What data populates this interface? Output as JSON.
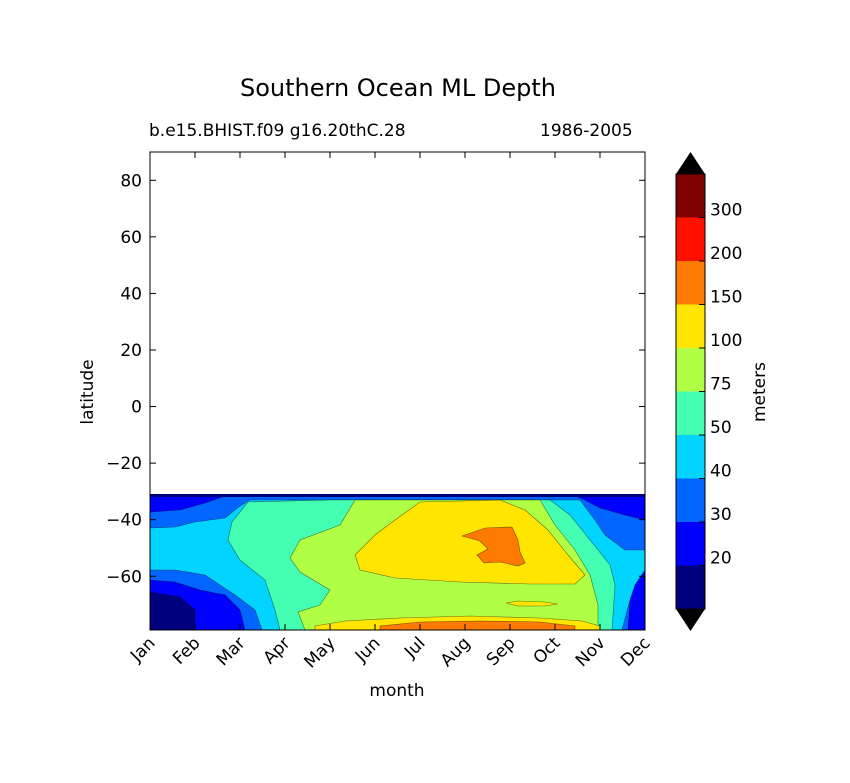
{
  "chart_data": {
    "type": "contourf",
    "title": "Southern Ocean ML Depth",
    "subtitle_left": "b.e15.BHIST.f09 g16.20thC.28",
    "subtitle_right": "1986-2005",
    "xlabel": "month",
    "ylabel": "latitude",
    "x_categories": [
      "Jan",
      "Feb",
      "Mar",
      "Apr",
      "May",
      "Jun",
      "Jul",
      "Aug",
      "Sep",
      "Oct",
      "Nov",
      "Dec"
    ],
    "yticks": [
      80,
      60,
      40,
      20,
      0,
      -20,
      -40,
      -60
    ],
    "ylim": [
      -79,
      90
    ],
    "data_lat_range": [
      -79,
      -32
    ],
    "colorbar": {
      "label": "meters",
      "extend": "both",
      "levels": [
        20,
        30,
        40,
        50,
        75,
        100,
        150,
        200,
        300
      ],
      "tick_labels": [
        "20",
        "30",
        "40",
        "50",
        "75",
        "100",
        "150",
        "200",
        "300"
      ],
      "colors": [
        "#00007f",
        "#0000ff",
        "#0066ff",
        "#00d4ff",
        "#44ffb1",
        "#b1ff44",
        "#ffe500",
        "#ff7a00",
        "#ff1100",
        "#7f0000"
      ],
      "under_color": "#000000",
      "over_color": "#000000"
    },
    "regions": [
      {
        "level": "20-30",
        "description": "shallowest mixed layers near -70 to -79 latitude, Jan-Mar"
      },
      {
        "level": "30-40",
        "description": "Jan-Apr and Nov-Dec, -32 to -45 and -70 to -79 latitude"
      },
      {
        "level": "50-75",
        "description": "broad band Mar-Nov between -32 and -79 latitude"
      },
      {
        "level": "100-150",
        "description": "winter maximum Jun-Oct centred near -55 latitude"
      },
      {
        "level": "150-200",
        "description": "peak in Aug-Sep near -45 to -55 latitude"
      }
    ]
  }
}
